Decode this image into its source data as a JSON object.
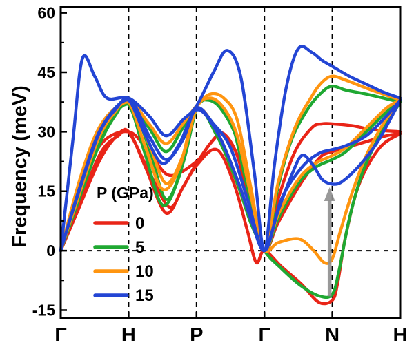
{
  "figure": {
    "background": "#ffffff",
    "axis_color": "#000000",
    "y_axis": {
      "title": "Frequency (meV)"
    },
    "legend": {
      "title": "P (GPa)"
    }
  },
  "chart_data": {
    "type": "line",
    "title": "",
    "xlabel": "",
    "ylabel": "Frequency (meV)",
    "x_path_labels": [
      "Γ",
      "H",
      "P",
      "Γ",
      "N",
      "H"
    ],
    "x_segment_positions": [
      0,
      1,
      2,
      3,
      4,
      5
    ],
    "ylim": [
      -15,
      60
    ],
    "y_ticks": [
      60,
      45,
      30,
      15,
      0,
      -15
    ],
    "y_minor_ticks": [
      52.5,
      37.5,
      22.5,
      7.5,
      -7.5
    ],
    "grid": {
      "vertical_dashed_at": [
        1,
        2,
        3,
        4
      ],
      "horizontal_dashed_at": [
        0
      ]
    },
    "legend_position": "inside-lower-left",
    "legend_title": "P (GPa)",
    "series": [
      {
        "name": "0",
        "pressure_GPa": 0,
        "color": "#e92417",
        "branches": [
          [
            [
              0,
              0
            ],
            [
              0.25,
              10
            ],
            [
              0.55,
              22
            ],
            [
              0.8,
              28.5
            ],
            [
              1,
              30
            ],
            [
              1.25,
              21
            ],
            [
              1.55,
              9.5
            ],
            [
              1.8,
              16
            ],
            [
              2,
              21.5
            ],
            [
              2.3,
              25.5
            ],
            [
              2.55,
              17
            ],
            [
              2.75,
              5
            ],
            [
              2.88,
              -3
            ],
            [
              3,
              0
            ],
            [
              3.25,
              -4
            ],
            [
              3.55,
              -8.5
            ],
            [
              3.8,
              -13
            ],
            [
              4,
              -12.5
            ],
            [
              4.08,
              -8
            ],
            [
              4.2,
              4
            ],
            [
              4.4,
              17
            ],
            [
              4.7,
              26
            ],
            [
              5,
              29.5
            ]
          ],
          [
            [
              0,
              0
            ],
            [
              0.3,
              13
            ],
            [
              0.6,
              25
            ],
            [
              0.85,
              29
            ],
            [
              1,
              30
            ],
            [
              1.3,
              20
            ],
            [
              1.6,
              11
            ],
            [
              1.8,
              16
            ],
            [
              2,
              22
            ],
            [
              2.25,
              28
            ],
            [
              2.4,
              29.5
            ],
            [
              2.6,
              24
            ],
            [
              2.8,
              11
            ],
            [
              3,
              0
            ],
            [
              3.2,
              7
            ],
            [
              3.5,
              16
            ],
            [
              3.7,
              21
            ],
            [
              3.85,
              24
            ],
            [
              4,
              25
            ],
            [
              4.2,
              26
            ],
            [
              4.5,
              27.5
            ],
            [
              4.8,
              29
            ],
            [
              5,
              29.5
            ]
          ],
          [
            [
              0,
              0
            ],
            [
              0.3,
              16
            ],
            [
              0.6,
              27
            ],
            [
              1,
              30
            ],
            [
              1.3,
              25
            ],
            [
              1.6,
              19
            ],
            [
              2,
              22.5
            ],
            [
              2.2,
              27
            ],
            [
              2.4,
              29.5
            ],
            [
              2.65,
              22
            ],
            [
              2.85,
              8
            ],
            [
              3,
              0
            ],
            [
              3.2,
              13
            ],
            [
              3.45,
              25
            ],
            [
              3.7,
              31
            ],
            [
              3.85,
              32
            ],
            [
              4,
              32
            ],
            [
              4.3,
              31.5
            ],
            [
              4.6,
              30.5
            ],
            [
              5,
              30
            ]
          ]
        ]
      },
      {
        "name": "5",
        "pressure_GPa": 5,
        "color": "#1fa832",
        "branches": [
          [
            [
              0,
              0
            ],
            [
              0.25,
              12
            ],
            [
              0.55,
              26
            ],
            [
              0.8,
              34
            ],
            [
              1,
              37
            ],
            [
              1.25,
              24
            ],
            [
              1.5,
              11.5
            ],
            [
              1.75,
              19
            ],
            [
              2,
              35.5
            ],
            [
              2.3,
              29
            ],
            [
              2.6,
              17
            ],
            [
              2.8,
              7
            ],
            [
              3,
              0
            ],
            [
              3.25,
              -4.5
            ],
            [
              3.55,
              -9
            ],
            [
              3.82,
              -11.5
            ],
            [
              4,
              -11
            ],
            [
              4.1,
              -5
            ],
            [
              4.25,
              8
            ],
            [
              4.45,
              20
            ],
            [
              4.7,
              29
            ],
            [
              5,
              37.5
            ]
          ],
          [
            [
              0,
              0
            ],
            [
              0.3,
              15
            ],
            [
              0.6,
              29
            ],
            [
              1,
              37
            ],
            [
              1.3,
              26
            ],
            [
              1.55,
              13
            ],
            [
              1.8,
              22
            ],
            [
              2,
              36
            ],
            [
              2.15,
              38
            ],
            [
              2.35,
              36
            ],
            [
              2.6,
              28
            ],
            [
              2.8,
              13
            ],
            [
              3,
              0
            ],
            [
              3.2,
              8
            ],
            [
              3.5,
              17
            ],
            [
              3.75,
              21
            ],
            [
              4,
              23
            ],
            [
              4.2,
              25
            ],
            [
              4.5,
              30
            ],
            [
              4.8,
              35
            ],
            [
              5,
              37.5
            ]
          ],
          [
            [
              0,
              0
            ],
            [
              0.3,
              18
            ],
            [
              0.6,
              31
            ],
            [
              1,
              37
            ],
            [
              1.3,
              31
            ],
            [
              1.55,
              25
            ],
            [
              1.8,
              31
            ],
            [
              2,
              36.5
            ],
            [
              2.2,
              38
            ],
            [
              2.5,
              33
            ],
            [
              2.75,
              16
            ],
            [
              3,
              0
            ],
            [
              3.2,
              16
            ],
            [
              3.4,
              28
            ],
            [
              3.65,
              36
            ],
            [
              3.85,
              40
            ],
            [
              4,
              41.5
            ],
            [
              4.2,
              40.5
            ],
            [
              4.5,
              39.5
            ],
            [
              4.75,
              38.5
            ],
            [
              5,
              37.5
            ]
          ]
        ]
      },
      {
        "name": "10",
        "pressure_GPa": 10,
        "color": "#ff9510",
        "branches": [
          [
            [
              0,
              0
            ],
            [
              0.25,
              13
            ],
            [
              0.55,
              28
            ],
            [
              0.8,
              35
            ],
            [
              1,
              37.5
            ],
            [
              1.25,
              26
            ],
            [
              1.5,
              15.5
            ],
            [
              1.75,
              21
            ],
            [
              2,
              35.5
            ],
            [
              2.3,
              30
            ],
            [
              2.6,
              18
            ],
            [
              2.8,
              8
            ],
            [
              3,
              0
            ],
            [
              3.2,
              2
            ],
            [
              3.5,
              3
            ],
            [
              3.7,
              0.5
            ],
            [
              3.88,
              -3
            ],
            [
              4,
              -2
            ],
            [
              4.12,
              5
            ],
            [
              4.3,
              15
            ],
            [
              4.5,
              24
            ],
            [
              4.75,
              32
            ],
            [
              5,
              38
            ]
          ],
          [
            [
              0,
              0
            ],
            [
              0.3,
              16
            ],
            [
              0.6,
              30
            ],
            [
              1,
              37.5
            ],
            [
              1.3,
              27
            ],
            [
              1.55,
              17
            ],
            [
              1.8,
              24
            ],
            [
              2,
              36
            ],
            [
              2.2,
              38.5
            ],
            [
              2.4,
              36
            ],
            [
              2.6,
              29
            ],
            [
              2.8,
              14
            ],
            [
              3,
              0
            ],
            [
              3.2,
              9
            ],
            [
              3.5,
              18
            ],
            [
              3.75,
              22
            ],
            [
              4,
              24
            ],
            [
              4.2,
              26
            ],
            [
              4.5,
              31
            ],
            [
              4.8,
              36
            ],
            [
              5,
              38
            ]
          ],
          [
            [
              0,
              0
            ],
            [
              0.3,
              19
            ],
            [
              0.6,
              32
            ],
            [
              1,
              37.5
            ],
            [
              1.3,
              32
            ],
            [
              1.55,
              27
            ],
            [
              1.8,
              32
            ],
            [
              2,
              36.5
            ],
            [
              2.2,
              39.5
            ],
            [
              2.4,
              38.5
            ],
            [
              2.6,
              33
            ],
            [
              2.8,
              16
            ],
            [
              3,
              0
            ],
            [
              3.2,
              17
            ],
            [
              3.45,
              31
            ],
            [
              3.7,
              39
            ],
            [
              3.85,
              42.5
            ],
            [
              4,
              44
            ],
            [
              4.2,
              43
            ],
            [
              4.5,
              41
            ],
            [
              4.75,
              39.5
            ],
            [
              5,
              38
            ]
          ]
        ]
      },
      {
        "name": "15",
        "pressure_GPa": 15,
        "color": "#2345d4",
        "branches": [
          [
            [
              0,
              0
            ],
            [
              0.25,
              14
            ],
            [
              0.55,
              29
            ],
            [
              0.8,
              35.5
            ],
            [
              1,
              38
            ],
            [
              1.25,
              29
            ],
            [
              1.5,
              22
            ],
            [
              1.75,
              27
            ],
            [
              2,
              35.5
            ],
            [
              2.3,
              30
            ],
            [
              2.6,
              18
            ],
            [
              2.8,
              8
            ],
            [
              3,
              0
            ],
            [
              3.2,
              10
            ],
            [
              3.4,
              19
            ],
            [
              3.55,
              24
            ],
            [
              3.7,
              22
            ],
            [
              3.85,
              18
            ],
            [
              4,
              16.8
            ],
            [
              4.15,
              17.5
            ],
            [
              4.4,
              21.5
            ],
            [
              4.65,
              27
            ],
            [
              4.85,
              33
            ],
            [
              5,
              38
            ]
          ],
          [
            [
              0,
              0
            ],
            [
              0.3,
              17
            ],
            [
              0.6,
              31
            ],
            [
              1,
              38
            ],
            [
              1.3,
              29
            ],
            [
              1.55,
              23
            ],
            [
              1.8,
              28
            ],
            [
              2,
              36
            ],
            [
              2.25,
              32
            ],
            [
              2.5,
              26
            ],
            [
              2.75,
              13
            ],
            [
              3,
              0
            ],
            [
              3.25,
              13
            ],
            [
              3.55,
              21
            ],
            [
              3.8,
              24.5
            ],
            [
              4,
              25.5
            ],
            [
              4.2,
              26.5
            ],
            [
              4.5,
              29
            ],
            [
              4.8,
              34
            ],
            [
              5,
              38
            ]
          ],
          [
            [
              0,
              0
            ],
            [
              0.18,
              28
            ],
            [
              0.32,
              48.5
            ],
            [
              0.5,
              44
            ],
            [
              0.68,
              38.5
            ],
            [
              1,
              38.5
            ],
            [
              1.3,
              34
            ],
            [
              1.55,
              29
            ],
            [
              1.8,
              33
            ],
            [
              2,
              36.5
            ],
            [
              2.25,
              45
            ],
            [
              2.45,
              50.5
            ],
            [
              2.65,
              44
            ],
            [
              2.85,
              20
            ],
            [
              3,
              0
            ],
            [
              3.15,
              22
            ],
            [
              3.32,
              41
            ],
            [
              3.5,
              51
            ],
            [
              3.7,
              50
            ],
            [
              3.85,
              48
            ],
            [
              4,
              46.5
            ],
            [
              4.25,
              44
            ],
            [
              4.5,
              42
            ],
            [
              4.75,
              40
            ],
            [
              5,
              38.5
            ]
          ]
        ]
      }
    ],
    "annotation_arrow": {
      "x": 3.96,
      "y_from": -11.5,
      "y_to": 16,
      "direction": "up",
      "color": "#8f8f8f"
    }
  }
}
